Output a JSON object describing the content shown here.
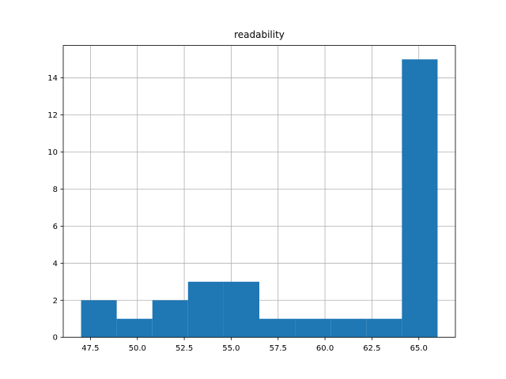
{
  "chart_data": {
    "type": "histogram",
    "title": "readability",
    "bins": [
      47.0,
      48.9,
      50.8,
      52.7,
      54.6,
      56.5,
      58.4,
      60.3,
      62.2,
      64.1,
      66.0
    ],
    "counts": [
      2,
      1,
      2,
      3,
      3,
      1,
      1,
      1,
      1,
      15
    ],
    "color": "#1f77b4",
    "xlim": [
      46.05,
      66.95
    ],
    "xticks": [
      47.5,
      {
        "value": 50,
        "label": "50.0"
      },
      52.5,
      {
        "value": 55,
        "label": "55.0"
      },
      57.5,
      {
        "value": 60,
        "label": "60.0"
      },
      62.5,
      {
        "value": 65,
        "label": "65.0"
      }
    ],
    "ylim": [
      0,
      15.75
    ],
    "yticks": [
      0,
      2,
      4,
      6,
      8,
      10,
      12,
      14
    ],
    "grid": true
  }
}
